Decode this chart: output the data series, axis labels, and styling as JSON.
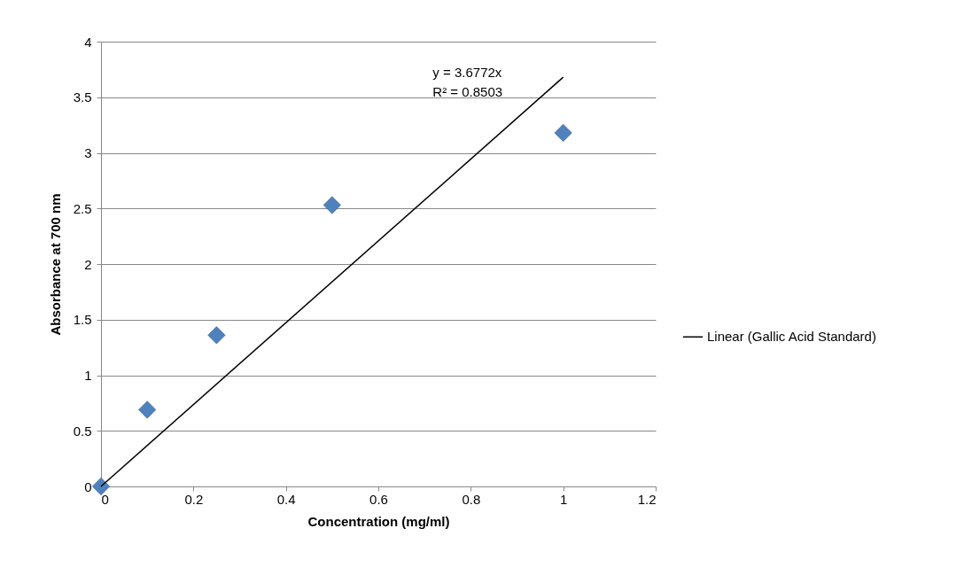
{
  "chart_data": {
    "type": "scatter",
    "xlabel": "Concentration  (mg/ml)",
    "ylabel": "Absorbance  at 700 nm",
    "xlim": [
      0,
      1.2
    ],
    "xticks": [
      0,
      0.2,
      0.4,
      0.6,
      0.8,
      1,
      1.2
    ],
    "ylim": [
      0,
      4
    ],
    "yticks": [
      0,
      0.5,
      1,
      1.5,
      2,
      2.5,
      3,
      3.5,
      4
    ],
    "grid": "y",
    "legend": "right",
    "series": [
      {
        "color": "#4f81bd",
        "marker": "diamond",
        "x": [
          0,
          0.1,
          0.25,
          0.5,
          1
        ],
        "values": [
          0,
          0.69,
          1.36,
          2.53,
          3.18
        ]
      },
      {
        "type": "line",
        "name": "Linear (Gallic Acid Standard)",
        "color": "#000000",
        "marker": "none",
        "x": [
          0,
          1
        ],
        "values": [
          0,
          3.68
        ]
      }
    ],
    "annotations": [
      "y = 3.6772x",
      "R² = 0.8503"
    ]
  }
}
